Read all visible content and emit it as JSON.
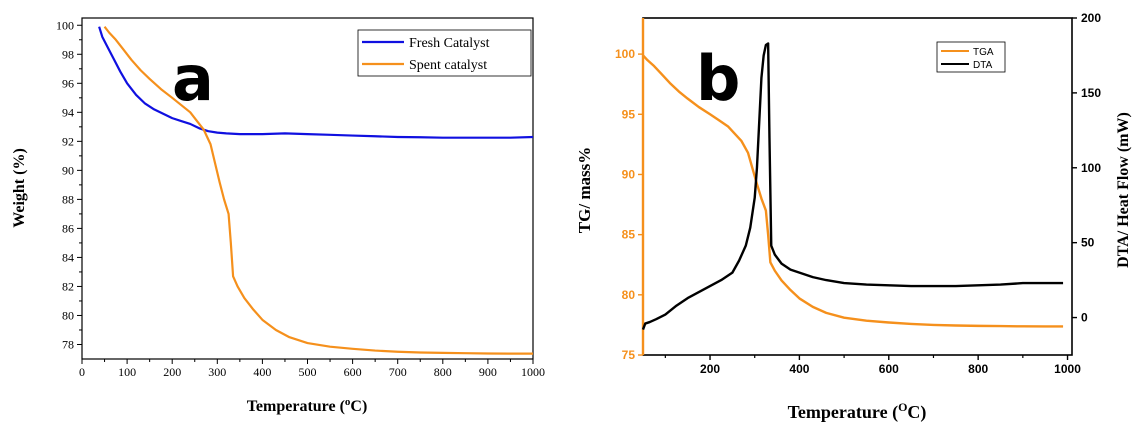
{
  "chart_data": [
    {
      "type": "line",
      "panel_label": "a",
      "xlabel": "Temperature (",
      "xlabel_unit_sup": "o",
      "xlabel_unit": "C)",
      "ylabel": "Weight (%)",
      "xlim": [
        0,
        1000
      ],
      "ylim": [
        77,
        100.5
      ],
      "x_ticks": [
        0,
        100,
        200,
        300,
        400,
        500,
        600,
        700,
        800,
        900,
        1000
      ],
      "y_ticks": [
        78,
        80,
        82,
        84,
        86,
        88,
        90,
        92,
        94,
        96,
        98,
        100
      ],
      "legend_position": "top-right",
      "series": [
        {
          "name": "Fresh Catalyst",
          "color": "#1010e0",
          "x": [
            38,
            45,
            55,
            70,
            85,
            100,
            120,
            140,
            160,
            180,
            200,
            220,
            240,
            260,
            280,
            300,
            320,
            350,
            400,
            450,
            500,
            550,
            600,
            650,
            700,
            750,
            800,
            850,
            900,
            950,
            1000
          ],
          "y": [
            99.9,
            99.2,
            98.6,
            97.7,
            96.8,
            96.0,
            95.2,
            94.6,
            94.2,
            93.9,
            93.6,
            93.4,
            93.2,
            92.9,
            92.7,
            92.6,
            92.55,
            92.5,
            92.5,
            92.55,
            92.5,
            92.45,
            92.4,
            92.35,
            92.3,
            92.28,
            92.25,
            92.25,
            92.25,
            92.25,
            92.3
          ]
        },
        {
          "name": "Spent catalyst",
          "color": "#f5901c",
          "x": [
            50,
            60,
            75,
            90,
            110,
            130,
            150,
            175,
            200,
            220,
            240,
            255,
            270,
            285,
            295,
            305,
            315,
            325,
            330,
            335,
            345,
            360,
            380,
            400,
            430,
            460,
            500,
            550,
            600,
            650,
            700,
            750,
            800,
            850,
            900,
            950,
            1000
          ],
          "y": [
            99.9,
            99.5,
            99.0,
            98.4,
            97.6,
            96.9,
            96.3,
            95.6,
            95.0,
            94.5,
            94.0,
            93.4,
            92.8,
            91.8,
            90.5,
            89.2,
            88.0,
            87.0,
            85.0,
            82.7,
            82.0,
            81.2,
            80.4,
            79.7,
            79.0,
            78.5,
            78.1,
            77.85,
            77.7,
            77.58,
            77.5,
            77.45,
            77.42,
            77.4,
            77.38,
            77.37,
            77.37
          ]
        }
      ]
    },
    {
      "type": "line",
      "panel_label": "b",
      "xlabel": "Temperature (",
      "xlabel_unit_sup": "O",
      "xlabel_unit": "C)",
      "ylabel_left": "TG/ mass%",
      "ylabel_right": "DTA/ Heat Flow (mW)",
      "xlim": [
        50,
        1010
      ],
      "ylim_left": [
        75,
        103
      ],
      "ylim_right": [
        -25,
        200
      ],
      "x_ticks": [
        200,
        400,
        600,
        800,
        1000
      ],
      "y_ticks_left": [
        75,
        80,
        85,
        90,
        95,
        100
      ],
      "y_ticks_right": [
        0,
        50,
        100,
        150,
        200
      ],
      "left_axis_color": "#f5901c",
      "right_axis_color": "#000000",
      "legend_position": "top-right",
      "series": [
        {
          "name": "TGA",
          "color": "#f5901c",
          "axis": "left",
          "x": [
            50,
            60,
            75,
            90,
            110,
            130,
            150,
            175,
            200,
            220,
            240,
            255,
            270,
            285,
            295,
            305,
            315,
            325,
            330,
            335,
            345,
            360,
            380,
            400,
            430,
            460,
            500,
            550,
            600,
            650,
            700,
            750,
            800,
            850,
            900,
            950,
            990
          ],
          "y": [
            99.9,
            99.5,
            99.0,
            98.4,
            97.6,
            96.9,
            96.3,
            95.6,
            95.0,
            94.5,
            94.0,
            93.4,
            92.8,
            91.8,
            90.5,
            89.2,
            88.0,
            87.0,
            85.0,
            82.7,
            82.0,
            81.2,
            80.4,
            79.7,
            79.0,
            78.5,
            78.1,
            77.85,
            77.7,
            77.58,
            77.5,
            77.45,
            77.42,
            77.4,
            77.38,
            77.37,
            77.37
          ]
        },
        {
          "name": "DTA",
          "color": "#000000",
          "axis": "right",
          "x": [
            50,
            55,
            65,
            80,
            100,
            125,
            150,
            175,
            200,
            225,
            250,
            265,
            280,
            290,
            300,
            305,
            310,
            315,
            320,
            325,
            330,
            333,
            337,
            345,
            360,
            380,
            400,
            430,
            460,
            500,
            550,
            600,
            650,
            700,
            750,
            800,
            850,
            900,
            950,
            990
          ],
          "y": [
            -8,
            -4,
            -3,
            -1,
            2,
            8,
            13,
            17,
            21,
            25,
            30,
            38,
            48,
            60,
            80,
            100,
            130,
            160,
            175,
            182,
            183,
            120,
            48,
            42,
            36,
            32,
            30,
            27,
            25,
            23,
            22,
            21.5,
            21,
            21,
            21,
            21.5,
            22,
            23,
            23,
            23
          ]
        }
      ]
    }
  ]
}
